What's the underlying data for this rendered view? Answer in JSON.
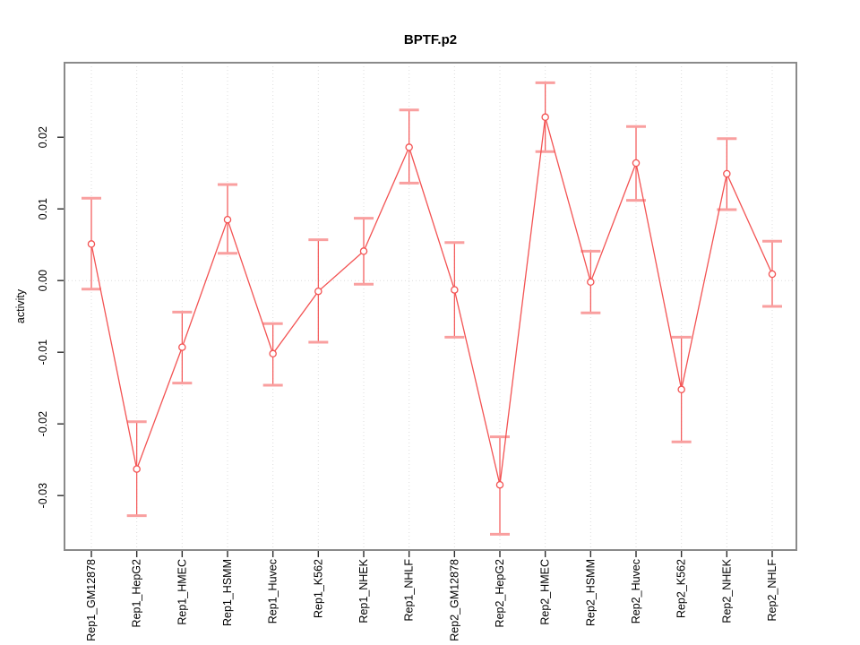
{
  "window": {
    "title": "BPTF.p2"
  },
  "colors": {
    "background": "#ffffff",
    "frame": "#8a8a8a",
    "tick": "#2b2b2b",
    "grid": "#dcdcdc",
    "series_line": "#f35353",
    "error_cap": "#f99f9f",
    "text": "#000000"
  },
  "chart_data": {
    "type": "line",
    "title": "BPTF.p2",
    "xlabel": "",
    "ylabel": "activity",
    "legend_position": "none",
    "grid": {
      "vertical_dotted_at_categories": true,
      "horizontal_dotted_zero_line": true
    },
    "ylim": [
      -0.0376,
      0.0304
    ],
    "yticks": [
      -0.03,
      -0.02,
      -0.01,
      0,
      0.01,
      0.02
    ],
    "ytick_labels": [
      "-0.03",
      "-0.02",
      "-0.01",
      "0.00",
      "0.01",
      "0.02"
    ],
    "categories": [
      "Rep1_GM12878",
      "Rep1_HepG2",
      "Rep1_HMEC",
      "Rep1_HSMM",
      "Rep1_Huvec",
      "Rep1_K562",
      "Rep1_NHEK",
      "Rep1_NHLF",
      "Rep2_GM12878",
      "Rep2_HepG2",
      "Rep2_HMEC",
      "Rep2_HSMM",
      "Rep2_Huvec",
      "Rep2_K562",
      "Rep2_NHEK",
      "Rep2_NHLF"
    ],
    "series": [
      {
        "name": "activity",
        "marker": "open-circle",
        "values": [
          0.0051,
          -0.0263,
          -0.0093,
          0.0085,
          -0.0102,
          -0.0015,
          0.0041,
          0.0186,
          -0.0013,
          -0.0285,
          0.0228,
          -0.0002,
          0.0164,
          -0.0152,
          0.0149,
          0.0009
        ],
        "error_upper": [
          0.0115,
          -0.0197,
          -0.0044,
          0.0134,
          -0.006,
          0.0057,
          0.0087,
          0.0238,
          0.0053,
          -0.0218,
          0.0276,
          0.0041,
          0.0215,
          -0.0079,
          0.0198,
          0.0055
        ],
        "error_lower": [
          -0.0012,
          -0.0328,
          -0.0143,
          0.0038,
          -0.0146,
          -0.0086,
          -0.0005,
          0.0136,
          -0.0079,
          -0.0354,
          0.018,
          -0.0045,
          0.0112,
          -0.0225,
          0.0099,
          -0.0036
        ]
      }
    ]
  }
}
